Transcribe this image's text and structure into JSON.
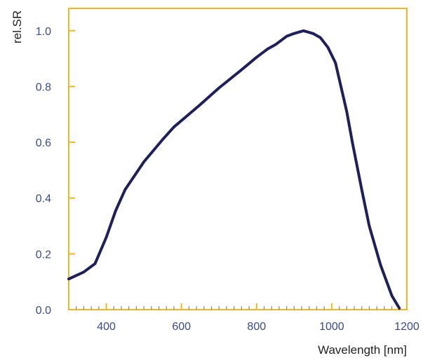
{
  "chart_data": {
    "type": "line",
    "title": "",
    "xlabel": "Wavelength [nm]",
    "ylabel": "rel.SR",
    "xlim": [
      300,
      1200
    ],
    "ylim": [
      0.0,
      1.08
    ],
    "xticks": [
      400,
      600,
      800,
      1000,
      1200
    ],
    "xtick_labels": [
      "400",
      "600",
      "800",
      "1000",
      "1200"
    ],
    "x_minor_step": 20,
    "yticks": [
      0.0,
      0.2,
      0.4,
      0.6,
      0.8,
      1.0
    ],
    "ytick_labels": [
      "0.0",
      "0.2",
      "0.4",
      "0.6",
      "0.8",
      "1.0"
    ],
    "grid": false,
    "legend": "none",
    "colors": {
      "frame": "#f0b820",
      "line": "#1f1f5a",
      "tick_labels": "#3a4a8c"
    },
    "series": [
      {
        "name": "",
        "x": [
          300,
          340,
          370,
          400,
          425,
          450,
          500,
          550,
          580,
          650,
          700,
          760,
          800,
          830,
          850,
          880,
          900,
          925,
          950,
          970,
          990,
          1010,
          1040,
          1055,
          1080,
          1100,
          1130,
          1160,
          1180
        ],
        "y": [
          0.11,
          0.135,
          0.165,
          0.26,
          0.355,
          0.43,
          0.53,
          0.61,
          0.655,
          0.735,
          0.795,
          0.86,
          0.905,
          0.935,
          0.95,
          0.98,
          0.99,
          1.0,
          0.99,
          0.975,
          0.94,
          0.885,
          0.71,
          0.6,
          0.43,
          0.3,
          0.16,
          0.05,
          0.005
        ]
      }
    ]
  }
}
